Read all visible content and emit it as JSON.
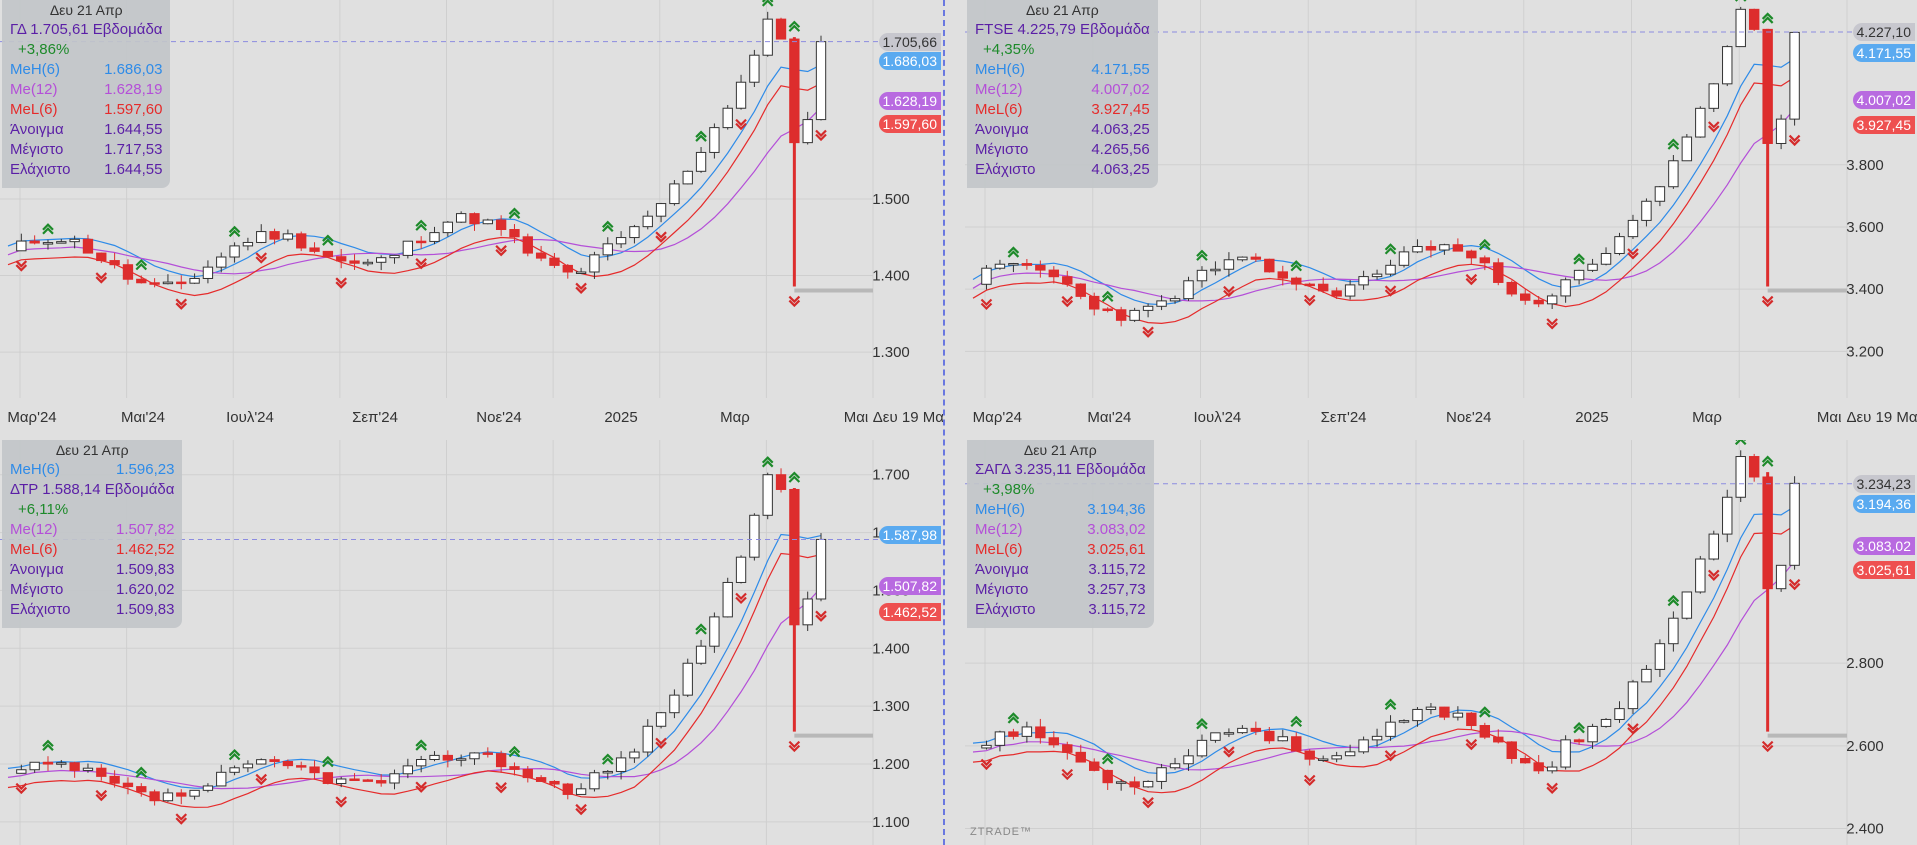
{
  "colors": {
    "bg": "#e0e0e0",
    "grid": "#cfcfcf",
    "up_candle": "#ffffff",
    "down_candle": "#dd2d2d",
    "meh": "#2e8be8",
    "me": "#b44fd8",
    "mel": "#e52b2b",
    "signal_up": "#1d8a2a",
    "signal_down": "#d42b2b",
    "last_price_tag": "#c7c7ce"
  },
  "watermark": "ZTRADE™",
  "x_axis_labels": [
    "Μαρ'24",
    "Μαι'24",
    "Ιουλ'24",
    "Σεπ'24",
    "Νοε'24",
    "2025",
    "Μαρ",
    "Μαι",
    "Δευ 19 Μαι"
  ],
  "panels": [
    {
      "id": "gd",
      "legend": {
        "date": "Δευ 21 Απρ",
        "title": "ΓΔ    1.705,61 Εβδομάδα",
        "change": "+3,86%",
        "rows": [
          {
            "label": "MeH(6)",
            "value": "1.686,03",
            "color": "#2e8be8"
          },
          {
            "label": "Me(12)",
            "value": "1.628,19",
            "color": "#b44fd8"
          },
          {
            "label": "MeL(6)",
            "value": "1.597,60",
            "color": "#e52b2b"
          },
          {
            "label": "Άνοιγμα",
            "value": "1.644,55",
            "color": "#5b1fa6"
          },
          {
            "label": "Μέγιστο",
            "value": "1.717,53",
            "color": "#5b1fa6"
          },
          {
            "label": "Ελάχιστο",
            "value": "1.644,55",
            "color": "#5b1fa6"
          }
        ]
      },
      "tags": [
        {
          "text": "1.705,66",
          "color": "#c7c7ce"
        },
        {
          "text": "1.686,03",
          "color": "#5aaaf0"
        },
        {
          "text": "1.628,19",
          "color": "#b86ae0"
        },
        {
          "text": "1.597,60",
          "color": "#ee5050"
        }
      ],
      "chart_data": {
        "type": "candlestick",
        "y_ticks": [
          "1.300",
          "1.400",
          "1.500"
        ],
        "ylim": [
          1240,
          1760
        ],
        "last": 1705.66,
        "start": 1430,
        "end": 1705.61,
        "min": 1370,
        "max": 1735,
        "seed": 11,
        "ma": {
          "meh": 1686.03,
          "me": 1628.19,
          "mel": 1597.6
        }
      }
    },
    {
      "id": "ftse",
      "legend": {
        "date": "Δευ 21 Απρ",
        "title": "FTSE    4.225,79 Εβδομάδα",
        "change": "+4,35%",
        "rows": [
          {
            "label": "MeH(6)",
            "value": "4.171,55",
            "color": "#2e8be8"
          },
          {
            "label": "Me(12)",
            "value": "4.007,02",
            "color": "#b44fd8"
          },
          {
            "label": "MeL(6)",
            "value": "3.927,45",
            "color": "#e52b2b"
          },
          {
            "label": "Άνοιγμα",
            "value": "4.063,25",
            "color": "#5b1fa6"
          },
          {
            "label": "Μέγιστο",
            "value": "4.265,56",
            "color": "#5b1fa6"
          },
          {
            "label": "Ελάχιστο",
            "value": "4.063,25",
            "color": "#5b1fa6"
          }
        ]
      },
      "tags": [
        {
          "text": "4.227,10",
          "color": "#c7c7ce"
        },
        {
          "text": "4.171,55",
          "color": "#5aaaf0"
        },
        {
          "text": "4.007,02",
          "color": "#b86ae0"
        },
        {
          "text": "3.927,45",
          "color": "#ee5050"
        }
      ],
      "chart_data": {
        "type": "candlestick",
        "y_ticks": [
          "3.200",
          "3.400",
          "3.600",
          "3.800"
        ],
        "ylim": [
          3050,
          4330
        ],
        "last": 4227.1,
        "start": 3430,
        "end": 4225.79,
        "min": 3280,
        "max": 4300,
        "seed": 23,
        "ma": {
          "meh": 4171.55,
          "me": 4007.02,
          "mel": 3927.45
        }
      }
    },
    {
      "id": "dtr",
      "legend": {
        "date": "Δευ 21 Απρ",
        "title": "ΔΤΡ    1.588,14 Εβδομάδα",
        "change": "+6,11%",
        "rows_before": [
          {
            "label": "MeH(6)",
            "value": "1.596,23",
            "color": "#2e8be8"
          }
        ],
        "rows": [
          {
            "label": "Me(12)",
            "value": "1.507,82",
            "color": "#b44fd8"
          },
          {
            "label": "MeL(6)",
            "value": "1.462,52",
            "color": "#e52b2b"
          },
          {
            "label": "Άνοιγμα",
            "value": "1.509,83",
            "color": "#5b1fa6"
          },
          {
            "label": "Μέγιστο",
            "value": "1.620,02",
            "color": "#5b1fa6"
          },
          {
            "label": "Ελάχιστο",
            "value": "1.509,83",
            "color": "#5b1fa6"
          }
        ]
      },
      "tags": [
        {
          "text": "1.587,98",
          "color": "#5aaaf0"
        },
        {
          "text": "1.507,82",
          "color": "#b86ae0"
        },
        {
          "text": "1.462,52",
          "color": "#ee5050"
        }
      ],
      "chart_data": {
        "type": "candlestick",
        "y_ticks": [
          "1.100",
          "1.200",
          "1.300",
          "1.400",
          "1.500",
          "1.600",
          "1.700"
        ],
        "ylim": [
          1060,
          1760
        ],
        "last": 1587.98,
        "start": 1180,
        "end": 1588.14,
        "min": 1130,
        "max": 1700,
        "seed": 37,
        "ma": {
          "meh": 1596.23,
          "me": 1507.82,
          "mel": 1462.52
        }
      }
    },
    {
      "id": "sagd",
      "legend": {
        "date": "Δευ 21 Απρ",
        "title": "ΣΑΓΔ    3.235,11 Εβδομάδα",
        "change": "+3,98%",
        "rows": [
          {
            "label": "MeH(6)",
            "value": "3.194,36",
            "color": "#2e8be8"
          },
          {
            "label": "Me(12)",
            "value": "3.083,02",
            "color": "#b44fd8"
          },
          {
            "label": "MeL(6)",
            "value": "3.025,61",
            "color": "#e52b2b"
          },
          {
            "label": "Άνοιγμα",
            "value": "3.115,72",
            "color": "#5b1fa6"
          },
          {
            "label": "Μέγιστο",
            "value": "3.257,73",
            "color": "#5b1fa6"
          },
          {
            "label": "Ελάχιστο",
            "value": "3.115,72",
            "color": "#5b1fa6"
          }
        ]
      },
      "tags": [
        {
          "text": "3.234,23",
          "color": "#c7c7ce"
        },
        {
          "text": "3.194,36",
          "color": "#5aaaf0"
        },
        {
          "text": "3.083,02",
          "color": "#b86ae0"
        },
        {
          "text": "3.025,61",
          "color": "#ee5050"
        }
      ],
      "chart_data": {
        "type": "candlestick",
        "y_ticks": [
          "2.400",
          "2.600",
          "2.800"
        ],
        "ylim": [
          2360,
          3340
        ],
        "last": 3234.23,
        "start": 2600,
        "end": 3235.11,
        "min": 2480,
        "max": 3300,
        "seed": 53,
        "ma": {
          "meh": 3194.36,
          "me": 3083.02,
          "mel": 3025.61
        }
      }
    }
  ]
}
